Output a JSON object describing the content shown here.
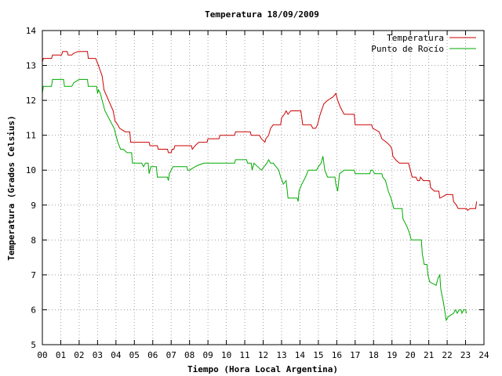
{
  "chart_data": {
    "type": "line",
    "title": "Temperatura 18/09/2009",
    "xlabel": "Tiempo (Hora Local Argentina)",
    "ylabel": "Temperatura (Grados Celsius)",
    "xlim": [
      0,
      24
    ],
    "ylim": [
      5,
      14
    ],
    "xticks": [
      "00",
      "01",
      "02",
      "03",
      "04",
      "05",
      "06",
      "07",
      "08",
      "09",
      "10",
      "11",
      "12",
      "13",
      "14",
      "15",
      "16",
      "17",
      "18",
      "19",
      "20",
      "21",
      "22",
      "23",
      "24"
    ],
    "yticks": [
      5,
      6,
      7,
      8,
      9,
      10,
      11,
      12,
      13,
      14
    ],
    "grid": true,
    "legend_position": "top-right",
    "series": [
      {
        "name": "Temperatura",
        "color": "#cc0000",
        "points": [
          [
            0,
            13.1
          ],
          [
            0.05,
            13.2
          ],
          [
            0.5,
            13.2
          ],
          [
            0.55,
            13.3
          ],
          [
            1.05,
            13.3
          ],
          [
            1.1,
            13.4
          ],
          [
            1.35,
            13.4
          ],
          [
            1.4,
            13.3
          ],
          [
            1.6,
            13.3
          ],
          [
            1.7,
            13.35
          ],
          [
            1.95,
            13.4
          ],
          [
            2.45,
            13.4
          ],
          [
            2.5,
            13.2
          ],
          [
            2.9,
            13.2
          ],
          [
            3.05,
            13.0
          ],
          [
            3.25,
            12.7
          ],
          [
            3.35,
            12.3
          ],
          [
            3.6,
            12.0
          ],
          [
            3.85,
            11.7
          ],
          [
            3.95,
            11.4
          ],
          [
            4.1,
            11.3
          ],
          [
            4.2,
            11.2
          ],
          [
            4.5,
            11.1
          ],
          [
            4.75,
            11.1
          ],
          [
            4.8,
            10.8
          ],
          [
            5.0,
            10.8
          ],
          [
            5.8,
            10.8
          ],
          [
            5.85,
            10.7
          ],
          [
            6.25,
            10.7
          ],
          [
            6.3,
            10.6
          ],
          [
            6.8,
            10.6
          ],
          [
            6.85,
            10.5
          ],
          [
            7.0,
            10.5
          ],
          [
            7.05,
            10.6
          ],
          [
            7.15,
            10.6
          ],
          [
            7.2,
            10.7
          ],
          [
            8.1,
            10.7
          ],
          [
            8.15,
            10.6
          ],
          [
            8.3,
            10.7
          ],
          [
            8.5,
            10.8
          ],
          [
            8.95,
            10.8
          ],
          [
            9.0,
            10.9
          ],
          [
            9.6,
            10.9
          ],
          [
            9.65,
            11.0
          ],
          [
            10.45,
            11.0
          ],
          [
            10.5,
            11.1
          ],
          [
            11.3,
            11.1
          ],
          [
            11.35,
            11.0
          ],
          [
            11.8,
            11.0
          ],
          [
            11.9,
            10.9
          ],
          [
            12.1,
            10.8
          ],
          [
            12.15,
            10.9
          ],
          [
            12.3,
            11.0
          ],
          [
            12.4,
            11.2
          ],
          [
            12.55,
            11.3
          ],
          [
            12.95,
            11.3
          ],
          [
            13.0,
            11.5
          ],
          [
            13.15,
            11.6
          ],
          [
            13.25,
            11.7
          ],
          [
            13.35,
            11.6
          ],
          [
            13.5,
            11.7
          ],
          [
            14.05,
            11.7
          ],
          [
            14.1,
            11.5
          ],
          [
            14.15,
            11.3
          ],
          [
            14.6,
            11.3
          ],
          [
            14.7,
            11.2
          ],
          [
            14.85,
            11.2
          ],
          [
            14.95,
            11.3
          ],
          [
            15.1,
            11.6
          ],
          [
            15.3,
            11.9
          ],
          [
            15.5,
            12.0
          ],
          [
            15.8,
            12.1
          ],
          [
            15.95,
            12.2
          ],
          [
            16.05,
            12.0
          ],
          [
            16.2,
            11.8
          ],
          [
            16.4,
            11.6
          ],
          [
            16.95,
            11.6
          ],
          [
            17.0,
            11.3
          ],
          [
            17.9,
            11.3
          ],
          [
            17.95,
            11.2
          ],
          [
            18.3,
            11.1
          ],
          [
            18.45,
            10.9
          ],
          [
            18.7,
            10.8
          ],
          [
            18.9,
            10.7
          ],
          [
            19.0,
            10.6
          ],
          [
            19.05,
            10.4
          ],
          [
            19.2,
            10.3
          ],
          [
            19.4,
            10.2
          ],
          [
            19.9,
            10.2
          ],
          [
            20.0,
            10.0
          ],
          [
            20.1,
            9.8
          ],
          [
            20.3,
            9.8
          ],
          [
            20.4,
            9.7
          ],
          [
            20.5,
            9.7
          ],
          [
            20.55,
            9.8
          ],
          [
            20.7,
            9.7
          ],
          [
            21.05,
            9.7
          ],
          [
            21.1,
            9.5
          ],
          [
            21.3,
            9.4
          ],
          [
            21.55,
            9.4
          ],
          [
            21.6,
            9.2
          ],
          [
            21.8,
            9.25
          ],
          [
            21.95,
            9.3
          ],
          [
            22.3,
            9.3
          ],
          [
            22.35,
            9.1
          ],
          [
            22.5,
            9.0
          ],
          [
            22.6,
            8.9
          ],
          [
            23.05,
            8.9
          ],
          [
            23.1,
            8.85
          ],
          [
            23.25,
            8.9
          ],
          [
            23.55,
            8.9
          ],
          [
            23.6,
            9.1
          ]
        ]
      },
      {
        "name": "Punto de Rocío",
        "color": "#00aa00",
        "points": [
          [
            0,
            12.2
          ],
          [
            0.05,
            12.4
          ],
          [
            0.5,
            12.4
          ],
          [
            0.55,
            12.6
          ],
          [
            1.15,
            12.6
          ],
          [
            1.2,
            12.4
          ],
          [
            1.6,
            12.4
          ],
          [
            1.7,
            12.5
          ],
          [
            2.0,
            12.6
          ],
          [
            2.45,
            12.6
          ],
          [
            2.5,
            12.4
          ],
          [
            2.95,
            12.4
          ],
          [
            3.0,
            12.2
          ],
          [
            3.05,
            12.3
          ],
          [
            3.15,
            12.2
          ],
          [
            3.25,
            12.0
          ],
          [
            3.4,
            11.7
          ],
          [
            3.7,
            11.4
          ],
          [
            3.9,
            11.2
          ],
          [
            4.0,
            11.0
          ],
          [
            4.1,
            10.8
          ],
          [
            4.25,
            10.6
          ],
          [
            4.4,
            10.6
          ],
          [
            4.6,
            10.5
          ],
          [
            4.85,
            10.5
          ],
          [
            4.9,
            10.2
          ],
          [
            5.4,
            10.2
          ],
          [
            5.5,
            10.1
          ],
          [
            5.6,
            10.2
          ],
          [
            5.75,
            10.2
          ],
          [
            5.8,
            9.9
          ],
          [
            5.9,
            10.1
          ],
          [
            6.2,
            10.1
          ],
          [
            6.25,
            9.8
          ],
          [
            6.8,
            9.8
          ],
          [
            6.85,
            9.7
          ],
          [
            6.9,
            9.9
          ],
          [
            7.0,
            10.0
          ],
          [
            7.1,
            10.1
          ],
          [
            7.85,
            10.1
          ],
          [
            7.9,
            10.0
          ],
          [
            8.0,
            10.0
          ],
          [
            8.3,
            10.1
          ],
          [
            8.5,
            10.15
          ],
          [
            8.8,
            10.2
          ],
          [
            10.45,
            10.2
          ],
          [
            10.5,
            10.3
          ],
          [
            11.1,
            10.3
          ],
          [
            11.15,
            10.2
          ],
          [
            11.35,
            10.2
          ],
          [
            11.4,
            10.0
          ],
          [
            11.5,
            10.2
          ],
          [
            11.7,
            10.1
          ],
          [
            11.9,
            10.0
          ],
          [
            12.05,
            10.1
          ],
          [
            12.2,
            10.2
          ],
          [
            12.3,
            10.3
          ],
          [
            12.4,
            10.2
          ],
          [
            12.55,
            10.2
          ],
          [
            12.7,
            10.1
          ],
          [
            12.85,
            10.0
          ],
          [
            12.95,
            9.8
          ],
          [
            13.1,
            9.6
          ],
          [
            13.25,
            9.7
          ],
          [
            13.35,
            9.2
          ],
          [
            13.85,
            9.2
          ],
          [
            13.9,
            9.1
          ],
          [
            13.95,
            9.4
          ],
          [
            14.1,
            9.6
          ],
          [
            14.3,
            9.8
          ],
          [
            14.45,
            10.0
          ],
          [
            14.9,
            10.0
          ],
          [
            15.0,
            10.1
          ],
          [
            15.15,
            10.2
          ],
          [
            15.25,
            10.4
          ],
          [
            15.35,
            10.0
          ],
          [
            15.5,
            9.8
          ],
          [
            15.9,
            9.8
          ],
          [
            15.95,
            9.6
          ],
          [
            16.05,
            9.4
          ],
          [
            16.15,
            9.9
          ],
          [
            16.4,
            10.0
          ],
          [
            16.95,
            10.0
          ],
          [
            17.0,
            9.9
          ],
          [
            17.8,
            9.9
          ],
          [
            17.85,
            10.0
          ],
          [
            17.95,
            10.0
          ],
          [
            18.05,
            9.9
          ],
          [
            18.45,
            9.9
          ],
          [
            18.5,
            9.8
          ],
          [
            18.65,
            9.7
          ],
          [
            18.8,
            9.4
          ],
          [
            18.95,
            9.2
          ],
          [
            19.1,
            8.9
          ],
          [
            19.55,
            8.9
          ],
          [
            19.6,
            8.6
          ],
          [
            19.8,
            8.4
          ],
          [
            19.95,
            8.2
          ],
          [
            20.05,
            8.0
          ],
          [
            20.6,
            8.0
          ],
          [
            20.65,
            7.6
          ],
          [
            20.75,
            7.3
          ],
          [
            20.9,
            7.3
          ],
          [
            20.95,
            7.0
          ],
          [
            21.05,
            6.8
          ],
          [
            21.4,
            6.7
          ],
          [
            21.5,
            6.9
          ],
          [
            21.6,
            7.0
          ],
          [
            21.65,
            6.6
          ],
          [
            21.8,
            6.2
          ],
          [
            21.95,
            5.7
          ],
          [
            22.05,
            5.8
          ],
          [
            22.35,
            5.9
          ],
          [
            22.45,
            6.0
          ],
          [
            22.55,
            5.9
          ],
          [
            22.65,
            6.0
          ],
          [
            22.75,
            6.0
          ],
          [
            22.8,
            5.9
          ],
          [
            22.9,
            6.0
          ],
          [
            23.0,
            6.0
          ],
          [
            23.05,
            5.9
          ]
        ]
      }
    ]
  }
}
